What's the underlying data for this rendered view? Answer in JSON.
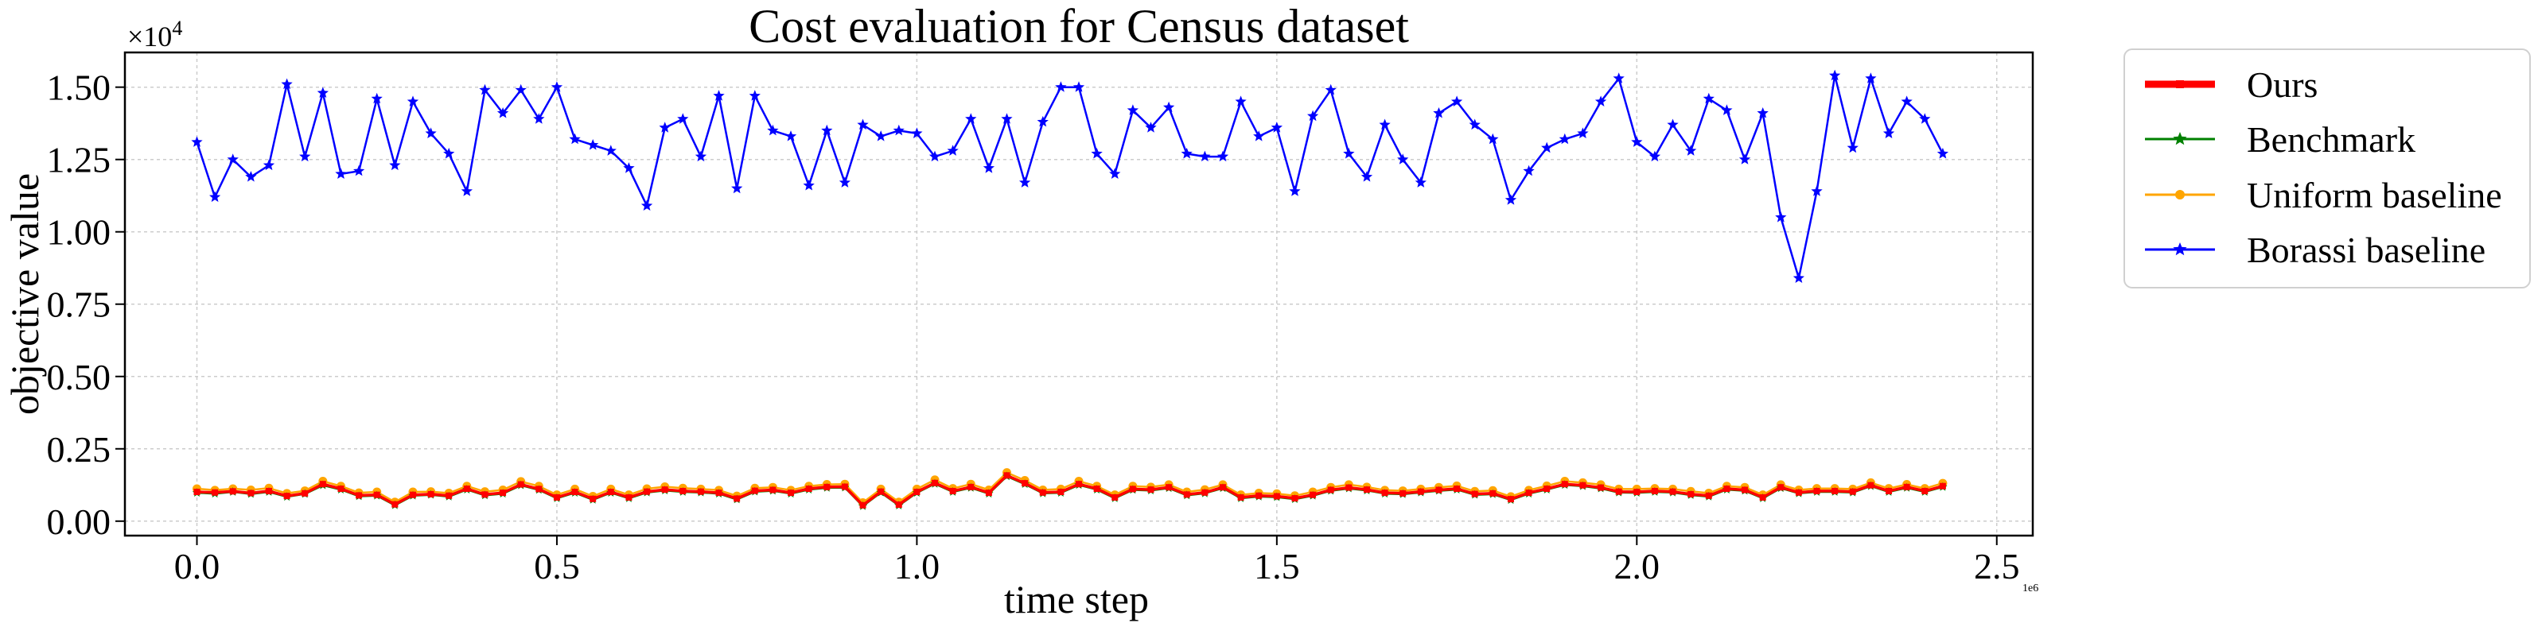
{
  "chart_data": {
    "type": "line",
    "title": "Cost evaluation for Census dataset",
    "xlabel": "time step",
    "ylabel": "objective value",
    "x_offset_label": "1e6",
    "y_offset_label": "×10",
    "y_offset_exponent": "4",
    "xlim": [
      -0.1,
      2.55
    ],
    "ylim": [
      -0.05,
      1.62
    ],
    "x_ticks": [
      0.0,
      0.5,
      1.0,
      1.5,
      2.0,
      2.5
    ],
    "x_tick_labels": [
      "0.0",
      "0.5",
      "1.0",
      "1.5",
      "2.0",
      "2.5"
    ],
    "y_ticks": [
      0.0,
      0.25,
      0.5,
      0.75,
      1.0,
      1.25,
      1.5
    ],
    "y_tick_labels": [
      "0.00",
      "0.25",
      "0.50",
      "0.75",
      "1.00",
      "1.25",
      "1.50"
    ],
    "grid": true,
    "legend_position": "outside-right-top",
    "x": [
      0.0,
      0.025,
      0.05,
      0.075,
      0.1,
      0.125,
      0.15,
      0.175,
      0.2,
      0.225,
      0.25,
      0.275,
      0.3,
      0.325,
      0.35,
      0.375,
      0.4,
      0.425,
      0.45,
      0.475,
      0.5,
      0.525,
      0.55,
      0.575,
      0.6,
      0.625,
      0.65,
      0.675,
      0.7,
      0.725,
      0.75,
      0.775,
      0.8,
      0.825,
      0.85,
      0.875,
      0.9,
      0.925,
      0.95,
      0.975,
      1.0,
      1.025,
      1.05,
      1.075,
      1.1,
      1.125,
      1.15,
      1.175,
      1.2,
      1.225,
      1.25,
      1.275,
      1.3,
      1.325,
      1.35,
      1.375,
      1.4,
      1.425,
      1.45,
      1.475,
      1.5,
      1.525,
      1.55,
      1.575,
      1.6,
      1.625,
      1.65,
      1.675,
      1.7,
      1.725,
      1.75,
      1.775,
      1.8,
      1.825,
      1.85,
      1.875,
      1.9,
      1.925,
      1.95,
      1.975,
      2.0,
      2.025,
      2.05,
      2.075,
      2.1,
      2.125,
      2.15,
      2.175,
      2.2,
      2.225,
      2.25,
      2.275,
      2.3,
      2.325,
      2.35,
      2.375,
      2.4,
      2.425
    ],
    "series": [
      {
        "name": "Ours",
        "color": "#ff0000",
        "marker": "square",
        "values": [
          0.101,
          0.099,
          0.103,
          0.097,
          0.104,
          0.087,
          0.096,
          0.128,
          0.112,
          0.089,
          0.091,
          0.058,
          0.091,
          0.093,
          0.088,
          0.112,
          0.092,
          0.098,
          0.127,
          0.111,
          0.082,
          0.101,
          0.077,
          0.101,
          0.082,
          0.102,
          0.109,
          0.104,
          0.102,
          0.098,
          0.078,
          0.105,
          0.108,
          0.098,
          0.112,
          0.118,
          0.119,
          0.055,
          0.102,
          0.057,
          0.101,
          0.132,
          0.104,
          0.118,
          0.098,
          0.158,
          0.131,
          0.099,
          0.101,
          0.128,
          0.112,
          0.082,
          0.111,
          0.109,
          0.117,
          0.092,
          0.099,
          0.117,
          0.082,
          0.088,
          0.086,
          0.079,
          0.091,
          0.108,
          0.116,
          0.109,
          0.098,
          0.096,
          0.102,
          0.108,
          0.112,
          0.094,
          0.096,
          0.076,
          0.098,
          0.112,
          0.128,
          0.124,
          0.116,
          0.102,
          0.101,
          0.104,
          0.102,
          0.093,
          0.088,
          0.112,
          0.108,
          0.082,
          0.117,
          0.099,
          0.104,
          0.104,
          0.102,
          0.124,
          0.104,
          0.118,
          0.104,
          0.121
        ]
      },
      {
        "name": "Benchmark",
        "color": "#008000",
        "marker": "star",
        "values": [
          0.098,
          0.095,
          0.101,
          0.094,
          0.101,
          0.084,
          0.094,
          0.124,
          0.109,
          0.086,
          0.088,
          0.055,
          0.088,
          0.091,
          0.085,
          0.109,
          0.089,
          0.095,
          0.124,
          0.108,
          0.079,
          0.098,
          0.074,
          0.098,
          0.079,
          0.099,
          0.106,
          0.101,
          0.099,
          0.095,
          0.075,
          0.102,
          0.105,
          0.095,
          0.109,
          0.115,
          0.116,
          0.052,
          0.099,
          0.054,
          0.098,
          0.129,
          0.101,
          0.115,
          0.095,
          0.155,
          0.128,
          0.096,
          0.098,
          0.125,
          0.109,
          0.079,
          0.108,
          0.106,
          0.114,
          0.089,
          0.096,
          0.114,
          0.079,
          0.085,
          0.083,
          0.076,
          0.088,
          0.105,
          0.113,
          0.106,
          0.095,
          0.093,
          0.099,
          0.105,
          0.109,
          0.091,
          0.093,
          0.073,
          0.095,
          0.109,
          0.125,
          0.121,
          0.113,
          0.099,
          0.098,
          0.101,
          0.099,
          0.09,
          0.085,
          0.109,
          0.105,
          0.079,
          0.114,
          0.096,
          0.101,
          0.101,
          0.099,
          0.121,
          0.101,
          0.115,
          0.101,
          0.118
        ]
      },
      {
        "name": "Uniform baseline",
        "color": "#ffa500",
        "marker": "circle",
        "values": [
          0.112,
          0.107,
          0.112,
          0.108,
          0.114,
          0.096,
          0.105,
          0.138,
          0.121,
          0.098,
          0.101,
          0.066,
          0.101,
          0.102,
          0.097,
          0.121,
          0.102,
          0.108,
          0.137,
          0.121,
          0.091,
          0.111,
          0.086,
          0.111,
          0.091,
          0.112,
          0.119,
          0.114,
          0.111,
          0.107,
          0.087,
          0.114,
          0.117,
          0.107,
          0.121,
          0.127,
          0.128,
          0.064,
          0.111,
          0.066,
          0.111,
          0.143,
          0.113,
          0.128,
          0.108,
          0.168,
          0.141,
          0.108,
          0.111,
          0.138,
          0.121,
          0.091,
          0.121,
          0.118,
          0.126,
          0.101,
          0.109,
          0.126,
          0.091,
          0.097,
          0.095,
          0.088,
          0.101,
          0.117,
          0.126,
          0.118,
          0.107,
          0.105,
          0.111,
          0.117,
          0.122,
          0.103,
          0.106,
          0.085,
          0.107,
          0.122,
          0.138,
          0.133,
          0.126,
          0.111,
          0.111,
          0.113,
          0.111,
          0.103,
          0.097,
          0.121,
          0.117,
          0.091,
          0.126,
          0.108,
          0.113,
          0.113,
          0.111,
          0.133,
          0.113,
          0.127,
          0.113,
          0.131
        ]
      },
      {
        "name": "Borassi baseline",
        "color": "#0000ff",
        "marker": "star",
        "values": [
          1.31,
          1.12,
          1.25,
          1.19,
          1.23,
          1.51,
          1.26,
          1.48,
          1.2,
          1.21,
          1.46,
          1.23,
          1.45,
          1.34,
          1.27,
          1.14,
          1.49,
          1.41,
          1.49,
          1.39,
          1.5,
          1.32,
          1.3,
          1.28,
          1.22,
          1.09,
          1.36,
          1.39,
          1.26,
          1.47,
          1.15,
          1.47,
          1.35,
          1.33,
          1.16,
          1.35,
          1.17,
          1.37,
          1.33,
          1.35,
          1.34,
          1.26,
          1.28,
          1.39,
          1.22,
          1.39,
          1.17,
          1.38,
          1.5,
          1.5,
          1.27,
          1.2,
          1.42,
          1.36,
          1.43,
          1.27,
          1.26,
          1.26,
          1.45,
          1.33,
          1.36,
          1.14,
          1.4,
          1.49,
          1.27,
          1.19,
          1.37,
          1.25,
          1.17,
          1.41,
          1.45,
          1.37,
          1.32,
          1.11,
          1.21,
          1.29,
          1.32,
          1.34,
          1.45,
          1.53,
          1.31,
          1.26,
          1.37,
          1.28,
          1.46,
          1.42,
          1.25,
          1.41,
          1.05,
          0.84,
          1.14,
          1.54,
          1.29,
          1.53,
          1.34,
          1.45,
          1.39,
          1.27
        ]
      }
    ]
  }
}
